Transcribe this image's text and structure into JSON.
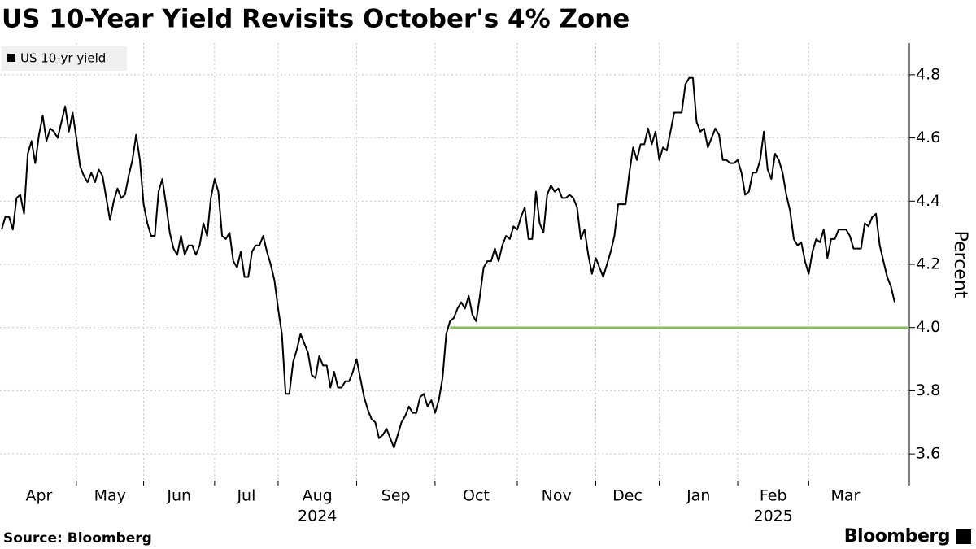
{
  "chart_data": {
    "type": "line",
    "title": "US 10-Year Yield Revisits October's 4% Zone",
    "y_label": "Percent",
    "source": "Source: Bloomberg",
    "brand": "Bloomberg",
    "legend": "top-left",
    "grid": true,
    "categories": [
      "Apr",
      null,
      null,
      null,
      null,
      null,
      null,
      null,
      null,
      null,
      null,
      null,
      null,
      null,
      null,
      null,
      null,
      null,
      null,
      null,
      "May",
      null,
      null,
      null,
      null,
      null,
      null,
      null,
      null,
      null,
      null,
      null,
      null,
      null,
      null,
      null,
      null,
      null,
      "Jun",
      null,
      null,
      null,
      null,
      null,
      null,
      null,
      null,
      null,
      null,
      null,
      null,
      null,
      null,
      null,
      null,
      null,
      null,
      "Jul",
      null,
      null,
      null,
      null,
      null,
      null,
      null,
      null,
      null,
      null,
      null,
      null,
      null,
      null,
      null,
      null,
      "Aug",
      null,
      null,
      null,
      null,
      null,
      null,
      null,
      null,
      null,
      null,
      null,
      null,
      null,
      null,
      null,
      null,
      null,
      null,
      null,
      null,
      "Sep",
      null,
      null,
      null,
      null,
      null,
      null,
      null,
      null,
      null,
      null,
      null,
      null,
      null,
      null,
      null,
      null,
      null,
      null,
      null,
      null,
      "Oct",
      null,
      null,
      null,
      null,
      null,
      null,
      null,
      null,
      null,
      null,
      null,
      null,
      null,
      null,
      null,
      null,
      null,
      null,
      null,
      null,
      null,
      "Nov",
      null,
      null,
      null,
      null,
      null,
      null,
      null,
      null,
      null,
      null,
      null,
      null,
      null,
      null,
      null,
      null,
      null,
      null,
      null,
      null,
      "Dec",
      null,
      null,
      null,
      null,
      null,
      null,
      null,
      null,
      null,
      null,
      null,
      null,
      null,
      null,
      null,
      null,
      "Jan",
      null,
      null,
      null,
      null,
      null,
      null,
      null,
      null,
      null,
      null,
      null,
      null,
      null,
      null,
      null,
      null,
      null,
      null,
      null,
      null,
      "Feb",
      null,
      null,
      null,
      null,
      null,
      null,
      null,
      null,
      null,
      null,
      null,
      null,
      null,
      null,
      null,
      null,
      null,
      null,
      "Mar",
      null,
      null,
      null,
      null,
      null,
      null,
      null,
      null,
      null,
      null,
      null,
      null,
      null,
      null,
      null,
      null,
      null,
      null,
      null,
      null,
      null,
      null,
      null
    ],
    "year_labels": [
      {
        "label": "2024",
        "under": "Aug"
      },
      {
        "label": "2025",
        "under": "Feb"
      }
    ],
    "series": [
      {
        "name": "US 10-yr yield",
        "color": "#000000",
        "values": [
          4.31,
          4.35,
          4.35,
          4.31,
          4.41,
          4.42,
          4.36,
          4.55,
          4.59,
          4.52,
          4.61,
          4.67,
          4.59,
          4.63,
          4.62,
          4.6,
          4.65,
          4.7,
          4.62,
          4.68,
          4.6,
          4.51,
          4.48,
          4.46,
          4.49,
          4.46,
          4.5,
          4.48,
          4.41,
          4.34,
          4.4,
          4.44,
          4.41,
          4.42,
          4.48,
          4.53,
          4.61,
          4.53,
          4.39,
          4.33,
          4.29,
          4.29,
          4.43,
          4.47,
          4.39,
          4.3,
          4.25,
          4.23,
          4.29,
          4.23,
          4.26,
          4.26,
          4.23,
          4.26,
          4.33,
          4.29,
          4.41,
          4.47,
          4.43,
          4.29,
          4.28,
          4.3,
          4.21,
          4.19,
          4.24,
          4.16,
          4.16,
          4.24,
          4.26,
          4.26,
          4.29,
          4.24,
          4.2,
          4.15,
          4.06,
          3.98,
          3.79,
          3.79,
          3.89,
          3.93,
          3.98,
          3.95,
          3.92,
          3.85,
          3.84,
          3.91,
          3.88,
          3.88,
          3.81,
          3.86,
          3.81,
          3.81,
          3.83,
          3.83,
          3.86,
          3.9,
          3.84,
          3.78,
          3.74,
          3.71,
          3.7,
          3.65,
          3.66,
          3.68,
          3.65,
          3.62,
          3.66,
          3.7,
          3.72,
          3.75,
          3.73,
          3.73,
          3.78,
          3.79,
          3.75,
          3.77,
          3.73,
          3.77,
          3.84,
          3.98,
          4.02,
          4.03,
          4.06,
          4.08,
          4.06,
          4.1,
          4.04,
          4.02,
          4.1,
          4.19,
          4.21,
          4.21,
          4.25,
          4.21,
          4.26,
          4.29,
          4.28,
          4.32,
          4.31,
          4.35,
          4.38,
          4.28,
          4.28,
          4.43,
          4.33,
          4.3,
          4.42,
          4.45,
          4.43,
          4.44,
          4.41,
          4.41,
          4.42,
          4.41,
          4.38,
          4.28,
          4.31,
          4.23,
          4.17,
          4.22,
          4.19,
          4.16,
          4.2,
          4.24,
          4.29,
          4.39,
          4.39,
          4.39,
          4.49,
          4.57,
          4.53,
          4.58,
          4.58,
          4.63,
          4.58,
          4.62,
          4.53,
          4.57,
          4.56,
          4.62,
          4.68,
          4.68,
          4.68,
          4.77,
          4.79,
          4.79,
          4.65,
          4.62,
          4.63,
          4.57,
          4.6,
          4.63,
          4.61,
          4.53,
          4.53,
          4.52,
          4.52,
          4.53,
          4.49,
          4.42,
          4.43,
          4.49,
          4.49,
          4.53,
          4.62,
          4.5,
          4.47,
          4.55,
          4.53,
          4.49,
          4.42,
          4.37,
          4.28,
          4.26,
          4.27,
          4.21,
          4.17,
          4.24,
          4.28,
          4.27,
          4.31,
          4.22,
          4.28,
          4.28,
          4.31,
          4.31,
          4.31,
          4.29,
          4.25,
          4.25,
          4.25,
          4.33,
          4.32,
          4.35,
          4.36,
          4.26,
          4.21,
          4.16,
          4.13,
          4.08
        ]
      }
    ],
    "reference_line": {
      "value": 4,
      "color": "#7ac943",
      "from": "Oct"
    },
    "ylim": [
      3.5,
      4.9
    ],
    "yticks": [
      3.6,
      3.8,
      {
        "value": 4,
        "label": "4.0"
      },
      4.2,
      4.4,
      4.6,
      4.8
    ]
  }
}
